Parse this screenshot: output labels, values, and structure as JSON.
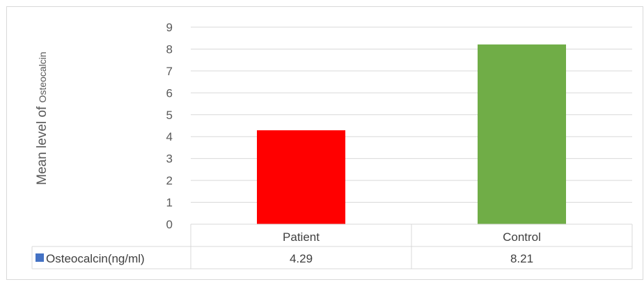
{
  "chart_data": {
    "type": "bar",
    "categories": [
      "Patient",
      "Control"
    ],
    "series": [
      {
        "name": "Osteocalcin(ng/ml)",
        "values": [
          4.29,
          8.21
        ],
        "color": "#4472c4"
      }
    ],
    "value_labels": [
      "4.29",
      "8.21"
    ],
    "bar_colors": [
      "#ff0000",
      "#70ad47"
    ],
    "ylabel_main": "Mean level of ",
    "ylabel_suffix": "Osteocalcin",
    "ylim": [
      0,
      9
    ],
    "yticks": [
      "0",
      "1",
      "2",
      "3",
      "4",
      "5",
      "6",
      "7",
      "8",
      "9"
    ],
    "grid": true,
    "legend": "data-table"
  }
}
